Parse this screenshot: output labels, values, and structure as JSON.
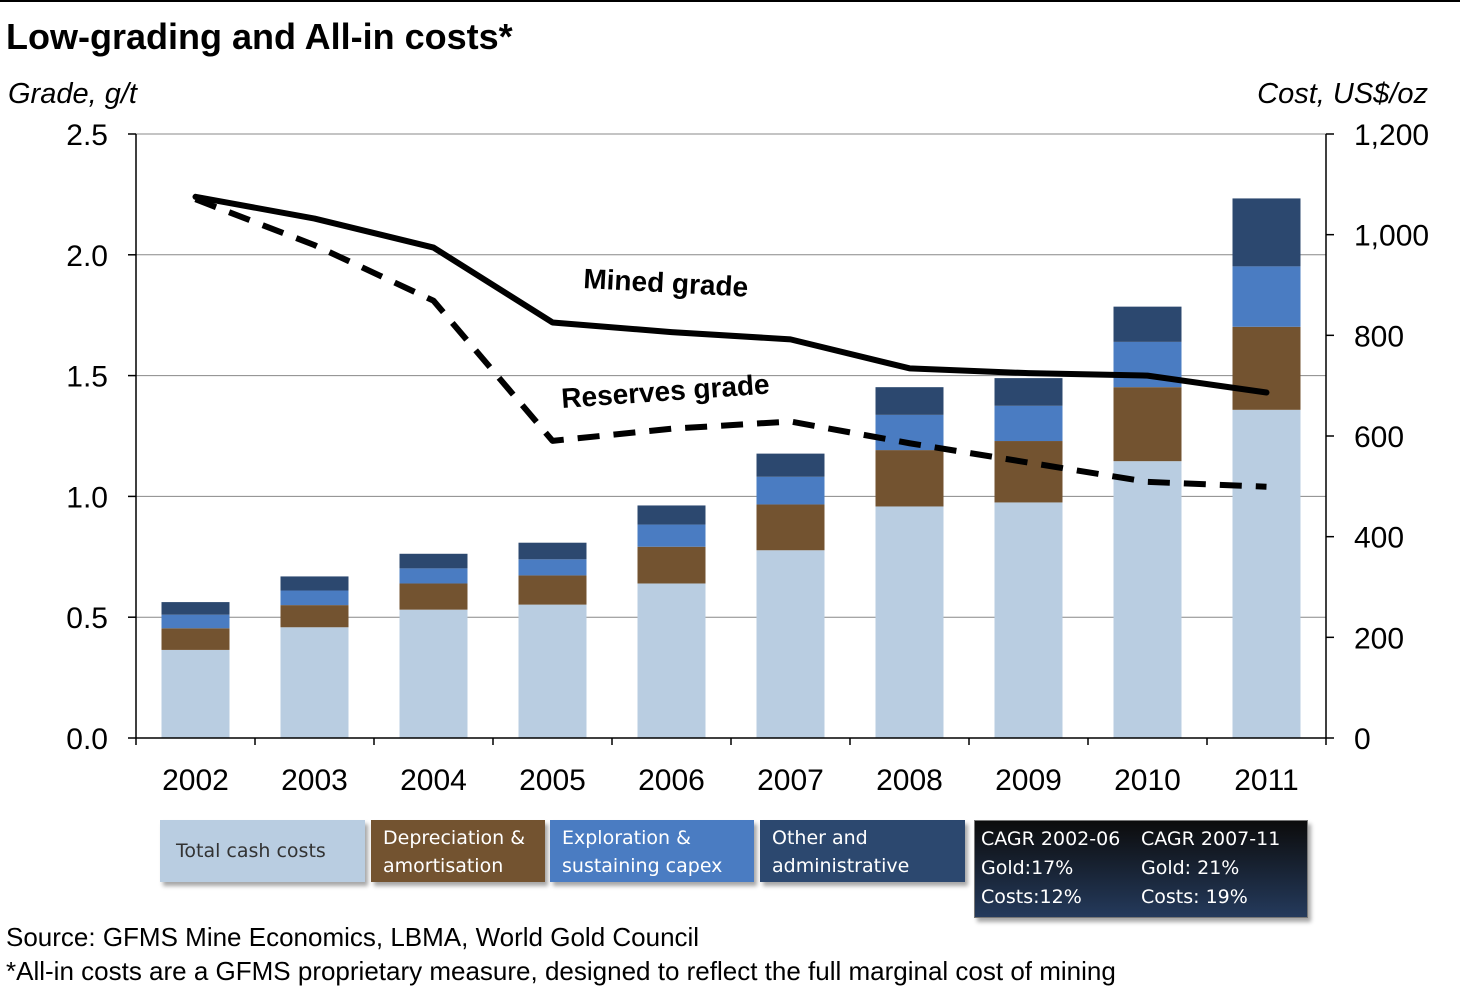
{
  "title": "Low-grading and All-in costs*",
  "left_axis_title": "Grade, g/t",
  "right_axis_title": "Cost, US$/oz",
  "chart_data": {
    "type": "bar",
    "categories": [
      "2002",
      "2003",
      "2004",
      "2005",
      "2006",
      "2007",
      "2008",
      "2009",
      "2010",
      "2011"
    ],
    "stacked": true,
    "series": [
      {
        "name": "Total cash costs",
        "axis": "right",
        "color": "#b9cde1",
        "values": [
          175,
          220,
          255,
          265,
          307,
          373,
          460,
          468,
          550,
          652
        ]
      },
      {
        "name": "Depreciation & amortisation",
        "axis": "right",
        "color": "#735330",
        "values": [
          43,
          44,
          52,
          58,
          73,
          91,
          112,
          122,
          147,
          165
        ]
      },
      {
        "name": "Exploration & sustaining capex",
        "axis": "right",
        "color": "#4a7cc2",
        "values": [
          27,
          29,
          30,
          32,
          44,
          55,
          70,
          70,
          90,
          120
        ]
      },
      {
        "name": "Other and administrative",
        "axis": "right",
        "color": "#2c486f",
        "values": [
          25,
          28,
          29,
          33,
          38,
          46,
          55,
          55,
          70,
          135
        ]
      }
    ],
    "lines": [
      {
        "name": "Mined grade",
        "axis": "left",
        "style": "solid",
        "values": [
          2.24,
          2.15,
          2.03,
          1.72,
          1.68,
          1.65,
          1.53,
          1.51,
          1.5,
          1.43
        ]
      },
      {
        "name": "Reserves grade",
        "axis": "left",
        "style": "dashed",
        "values": [
          2.23,
          2.04,
          1.81,
          1.23,
          1.28,
          1.31,
          1.22,
          1.14,
          1.06,
          1.04
        ]
      }
    ],
    "line_labels": [
      "Mined grade",
      "Reserves grade"
    ],
    "left_axis": {
      "ylim": [
        0,
        2.5
      ],
      "ticks": [
        "0.0",
        "0.5",
        "1.0",
        "1.5",
        "2.0",
        "2.5"
      ]
    },
    "right_axis": {
      "ylim": [
        0,
        1200
      ],
      "ticks": [
        "0",
        "200",
        "400",
        "600",
        "800",
        "1,000",
        "1,200"
      ]
    },
    "grid": true
  },
  "legend": {
    "total_cash": "Total cash costs",
    "depreciation": [
      "Depreciation &",
      "amortisation"
    ],
    "exploration": [
      "Exploration &",
      "sustaining capex"
    ],
    "other": [
      "Other and",
      "administrative"
    ]
  },
  "cagr": {
    "col1": [
      "CAGR 2002-06",
      "Gold:17%",
      "Costs:12%"
    ],
    "col2": [
      "CAGR 2007-11",
      "Gold: 21%",
      "Costs: 19%"
    ]
  },
  "source": "Source: GFMS Mine Economics, LBMA,  World Gold Council",
  "footnote": "*All-in costs are a GFMS proprietary measure, designed to reflect the full marginal cost of mining"
}
